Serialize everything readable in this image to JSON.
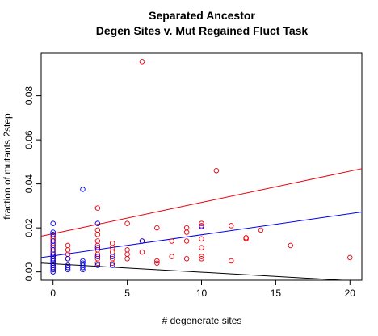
{
  "chart_data": {
    "type": "scatter",
    "title_line1": "Separated Ancestor",
    "title_line2": "Degen Sites v. Mut Regained Fluct Task",
    "xlabel": "# degenerate sites",
    "ylabel": "fraction of mutants 2step",
    "xlim": [
      -0.8,
      20.8
    ],
    "ylim": [
      -0.0038,
      0.0993
    ],
    "x_ticks": [
      0,
      5,
      10,
      15,
      20
    ],
    "x_tick_labels": [
      "0",
      "5",
      "10",
      "15",
      "20"
    ],
    "y_ticks": [
      0.0,
      0.02,
      0.04,
      0.06,
      0.08
    ],
    "y_tick_labels": [
      "0.00",
      "0.02",
      "0.04",
      "0.06",
      "0.08"
    ],
    "grid": false,
    "colors": {
      "red": "#e8000b",
      "blue": "#0000ee",
      "black": "#000000"
    },
    "series": [
      {
        "color": "red",
        "points": [
          [
            0,
            0.001
          ],
          [
            0,
            0.002
          ],
          [
            0,
            0.003
          ],
          [
            0,
            0.004
          ],
          [
            0,
            0.005
          ],
          [
            0,
            0.006
          ],
          [
            0,
            0.007
          ],
          [
            0,
            0.008
          ],
          [
            0,
            0.009
          ],
          [
            0,
            0.011
          ],
          [
            0,
            0.013
          ],
          [
            0,
            0.015
          ],
          [
            0,
            0.016
          ],
          [
            1,
            0.003
          ],
          [
            1,
            0.006
          ],
          [
            1,
            0.008
          ],
          [
            1,
            0.01
          ],
          [
            1,
            0.012
          ],
          [
            3,
            0.004
          ],
          [
            3,
            0.006
          ],
          [
            3,
            0.008
          ],
          [
            3,
            0.01
          ],
          [
            3,
            0.012
          ],
          [
            3,
            0.014
          ],
          [
            3,
            0.017
          ],
          [
            3,
            0.019
          ],
          [
            3,
            0.029
          ],
          [
            4,
            0.004
          ],
          [
            4,
            0.006
          ],
          [
            4,
            0.009
          ],
          [
            4,
            0.011
          ],
          [
            4,
            0.013
          ],
          [
            5,
            0.006
          ],
          [
            5,
            0.008
          ],
          [
            5,
            0.01
          ],
          [
            5,
            0.022
          ],
          [
            6,
            0.009
          ],
          [
            6,
            0.014
          ],
          [
            6,
            0.0955
          ],
          [
            7,
            0.004
          ],
          [
            7,
            0.005
          ],
          [
            7,
            0.02
          ],
          [
            8,
            0.007
          ],
          [
            8,
            0.014
          ],
          [
            9,
            0.006
          ],
          [
            9,
            0.014
          ],
          [
            9,
            0.018
          ],
          [
            9,
            0.02
          ],
          [
            10,
            0.006
          ],
          [
            10,
            0.007
          ],
          [
            10,
            0.011
          ],
          [
            10,
            0.015
          ],
          [
            10,
            0.021
          ],
          [
            10,
            0.022
          ],
          [
            11,
            0.046
          ],
          [
            12,
            0.005
          ],
          [
            12,
            0.021
          ],
          [
            13,
            0.015
          ],
          [
            13,
            0.0155
          ],
          [
            14,
            0.019
          ],
          [
            16,
            0.012
          ],
          [
            20,
            0.0065
          ]
        ],
        "trend": [
          [
            -0.8,
            0.0162
          ],
          [
            20.8,
            0.0469
          ]
        ]
      },
      {
        "color": "blue",
        "points": [
          [
            0,
            0.0
          ],
          [
            0,
            0.001
          ],
          [
            0,
            0.002
          ],
          [
            0,
            0.003
          ],
          [
            0,
            0.004
          ],
          [
            0,
            0.005
          ],
          [
            0,
            0.006
          ],
          [
            0,
            0.007
          ],
          [
            0,
            0.008
          ],
          [
            0,
            0.01
          ],
          [
            0,
            0.012
          ],
          [
            0,
            0.014
          ],
          [
            0,
            0.017
          ],
          [
            0,
            0.018
          ],
          [
            0,
            0.022
          ],
          [
            1,
            0.001
          ],
          [
            1,
            0.002
          ],
          [
            1,
            0.003
          ],
          [
            1,
            0.006
          ],
          [
            2,
            0.001
          ],
          [
            2,
            0.002
          ],
          [
            2,
            0.003
          ],
          [
            2,
            0.004
          ],
          [
            2,
            0.005
          ],
          [
            2,
            0.0375
          ],
          [
            3,
            0.003
          ],
          [
            3,
            0.007
          ],
          [
            3,
            0.011
          ],
          [
            3,
            0.022
          ],
          [
            4,
            0.003
          ],
          [
            4,
            0.007
          ],
          [
            6,
            0.014
          ],
          [
            10,
            0.0205
          ]
        ],
        "trend": [
          [
            -0.8,
            0.0065
          ],
          [
            20.8,
            0.0272
          ]
        ]
      },
      {
        "color": "black",
        "points": [],
        "trend": [
          [
            -0.8,
            0.004
          ],
          [
            19.5,
            -0.0038
          ]
        ]
      }
    ]
  }
}
